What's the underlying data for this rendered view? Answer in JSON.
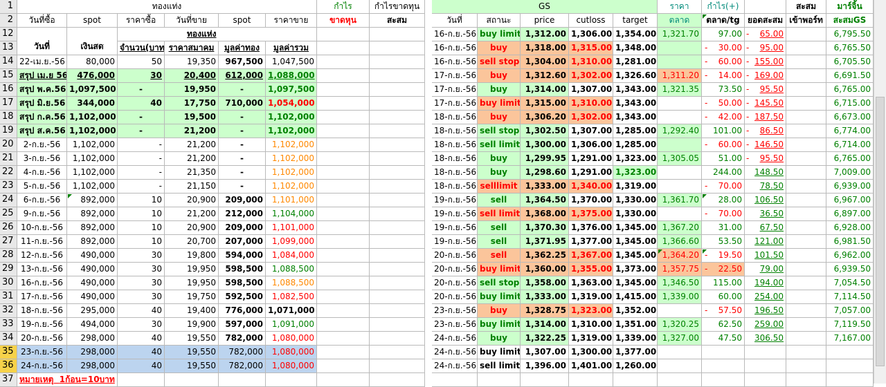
{
  "header": {
    "group1": "ทองแท่ง",
    "profit": "กำไร",
    "cum_pl": "กำไรขาดทุน",
    "gs": "GS",
    "gs_price": "ราคา",
    "gs_profit": "กำไร(+)",
    "cum": "สะสม",
    "margin": "มาร์จิ้น",
    "buy_date": "วันที่ซื้อ",
    "spot": "spot",
    "buy_price": "ราคาซื้อ",
    "sell_date": "วันที่ขาย",
    "spot2": "spot",
    "sell_price": "ราคาขาย",
    "loss": "ขาดหุน",
    "cum2": "สะสม",
    "gs_date": "วันที่",
    "status": "สถานะ",
    "price": "price",
    "cutloss": "cutloss",
    "target": "target",
    "market": "ตลาด",
    "per_tg": "ตลาด/tg",
    "cum_total": "ยอดสะสม",
    "port": "เข้าพอร์ท",
    "cum_gs": "สะสมGS",
    "date_label": "วันที่",
    "cash": "เงินสด",
    "gold": "ทองแห่ง",
    "qty": "จำนวน(บาท",
    "assoc_price": "ราคาสมาคม",
    "gold_value": "มูลค่าทอง",
    "total_value": "มูลค่ารวม"
  },
  "row_numbers": [
    "1",
    "2",
    "12",
    "13",
    "14",
    "15",
    "16",
    "17",
    "18",
    "19",
    "20",
    "21",
    "22",
    "23",
    "24",
    "25",
    "26",
    "27",
    "28",
    "29",
    "30",
    "31",
    "32",
    "33",
    "34",
    "35",
    "36",
    "37"
  ],
  "left_rows": [
    {
      "n": "14",
      "d": "22-เม.ย.-56",
      "cash": "80,000",
      "qty": "50",
      "price": "19,350",
      "gold": "967,500",
      "total": "1,047,500"
    },
    {
      "n": "15",
      "d": "สรุป เม.ย 56",
      "cash": "476,000",
      "qty": "30",
      "price": "20,400",
      "gold": "612,000",
      "total": "1,088,000"
    },
    {
      "n": "16",
      "d": "สรุป พ.ค.56",
      "cash": "1,097,500",
      "qty": "-",
      "price": "19,950",
      "gold": "-",
      "total": "1,097,500"
    },
    {
      "n": "17",
      "d": "สรุป มิ.ย.56",
      "cash": "344,000",
      "qty": "40",
      "price": "17,750",
      "gold": "710,000",
      "total": "1,054,000"
    },
    {
      "n": "18",
      "d": "สรุป ก.ค.56",
      "cash": "1,102,000",
      "qty": "-",
      "price": "19,500",
      "gold": "-",
      "total": "1,102,000"
    },
    {
      "n": "19",
      "d": "สรุป ส.ค.56",
      "cash": "1,102,000",
      "qty": "-",
      "price": "21,200",
      "gold": "-",
      "total": "1,102,000"
    },
    {
      "n": "20",
      "d": "2-ก.ย.-56",
      "cash": "1,102,000",
      "qty": "-",
      "price": "21,200",
      "gold": "-",
      "total": "1,102,000"
    },
    {
      "n": "21",
      "d": "3-ก.ย.-56",
      "cash": "1,102,000",
      "qty": "-",
      "price": "21,200",
      "gold": "-",
      "total": "1,102,000"
    },
    {
      "n": "22",
      "d": "4-ก.ย.-56",
      "cash": "1,102,000",
      "qty": "-",
      "price": "21,350",
      "gold": "-",
      "total": "1,102,000"
    },
    {
      "n": "23",
      "d": "5-ก.ย.-56",
      "cash": "1,102,000",
      "qty": "-",
      "price": "21,150",
      "gold": "-",
      "total": "1,102,000"
    },
    {
      "n": "24",
      "d": "6-ก.ย.-56",
      "cash": "892,000",
      "qty": "10",
      "price": "20,900",
      "gold": "209,000",
      "total": "1,101,000"
    },
    {
      "n": "25",
      "d": "9-ก.ย.-56",
      "cash": "892,000",
      "qty": "10",
      "price": "21,200",
      "gold": "212,000",
      "total": "1,104,000"
    },
    {
      "n": "26",
      "d": "10-ก.ย.-56",
      "cash": "892,000",
      "qty": "10",
      "price": "20,900",
      "gold": "209,000",
      "total": "1,101,000"
    },
    {
      "n": "27",
      "d": "11-ก.ย.-56",
      "cash": "892,000",
      "qty": "10",
      "price": "20,700",
      "gold": "207,000",
      "total": "1,099,000"
    },
    {
      "n": "28",
      "d": "12-ก.ย.-56",
      "cash": "490,000",
      "qty": "30",
      "price": "19,800",
      "gold": "594,000",
      "total": "1,084,000"
    },
    {
      "n": "29",
      "d": "13-ก.ย.-56",
      "cash": "490,000",
      "qty": "30",
      "price": "19,950",
      "gold": "598,500",
      "total": "1,088,500"
    },
    {
      "n": "30",
      "d": "16-ก.ย.-56",
      "cash": "490,000",
      "qty": "30",
      "price": "19,950",
      "gold": "598,500",
      "total": "1,088,500"
    },
    {
      "n": "31",
      "d": "17-ก.ย.-56",
      "cash": "490,000",
      "qty": "30",
      "price": "19,750",
      "gold": "592,500",
      "total": "1,082,500"
    },
    {
      "n": "32",
      "d": "18-ก.ย.-56",
      "cash": "295,000",
      "qty": "40",
      "price": "19,400",
      "gold": "776,000",
      "total": "1,071,000"
    },
    {
      "n": "33",
      "d": "19-ก.ย.-56",
      "cash": "494,000",
      "qty": "30",
      "price": "19,900",
      "gold": "597,000",
      "total": "1,091,000"
    },
    {
      "n": "34",
      "d": "20-ก.ย.-56",
      "cash": "298,000",
      "qty": "40",
      "price": "19,550",
      "gold": "782,000",
      "total": "1,080,000"
    },
    {
      "n": "35",
      "d": "23-ก.ย.-56",
      "cash": "298,000",
      "qty": "40",
      "price": "19,550",
      "gold": "782,000",
      "total": "1,080,000"
    },
    {
      "n": "36",
      "d": "24-ก.ย.-56",
      "cash": "298,000",
      "qty": "40",
      "price": "19,550",
      "gold": "782,000",
      "total": "1,080,000"
    }
  ],
  "gs_rows": [
    {
      "d": "16-ก.ย.-56",
      "st": "buy limit",
      "price": "1,312.00",
      "cut": "1,306.00",
      "tgt": "1,354.00",
      "mkt": "1,321.70",
      "pl": "97.00",
      "cum": "65.00",
      "gs": "6,795.50"
    },
    {
      "d": "16-ก.ย.-56",
      "st": "buy",
      "price": "1,318.00",
      "cut": "1,315.00",
      "tgt": "1,348.00",
      "mkt": "",
      "pl": "30.00",
      "cum": "95.00",
      "gs": "6,765.50"
    },
    {
      "d": "16-ก.ย.-56",
      "st": "sell stop",
      "price": "1,304.00",
      "cut": "1,310.00",
      "tgt": "1,281.00",
      "mkt": "",
      "pl": "60.00",
      "cum": "155.00",
      "gs": "6,705.50"
    },
    {
      "d": "17-ก.ย.-56",
      "st": "buy",
      "price": "1,312.60",
      "cut": "1,302.00",
      "tgt": "1,326.60",
      "mkt": "1,311.20",
      "pl": "14.00",
      "cum": "169.00",
      "gs": "6,691.50"
    },
    {
      "d": "17-ก.ย.-56",
      "st": "buy",
      "price": "1,314.00",
      "cut": "1,307.00",
      "tgt": "1,343.00",
      "mkt": "1,321.35",
      "pl": "73.50",
      "cum": "95.50",
      "gs": "6,765.00"
    },
    {
      "d": "17-ก.ย.-56",
      "st": "buy limit",
      "price": "1,315.00",
      "cut": "1,310.00",
      "tgt": "1,343.00",
      "mkt": "",
      "pl": "50.00",
      "cum": "145.50",
      "gs": "6,715.00"
    },
    {
      "d": "18-ก.ย.-56",
      "st": "buy",
      "price": "1,306.20",
      "cut": "1,302.00",
      "tgt": "1,343.00",
      "mkt": "",
      "pl": "42.00",
      "cum": "187.50",
      "gs": "6,673.00"
    },
    {
      "d": "18-ก.ย.-56",
      "st": "sell stop",
      "price": "1,302.50",
      "cut": "1,307.00",
      "tgt": "1,285.00",
      "mkt": "1,292.40",
      "pl": "101.00",
      "cum": "86.50",
      "gs": "6,774.00"
    },
    {
      "d": "18-ก.ย.-56",
      "st": "sell limit",
      "price": "1,300.00",
      "cut": "1,306.00",
      "tgt": "1,285.00",
      "mkt": "",
      "pl": "60.00",
      "cum": "146.50",
      "gs": "6,714.00"
    },
    {
      "d": "18-ก.ย.-56",
      "st": "buy",
      "price": "1,299.95",
      "cut": "1,291.00",
      "tgt": "1,323.00",
      "mkt": "1,305.05",
      "pl": "51.00",
      "cum": "95.50",
      "gs": "6,765.00"
    },
    {
      "d": "18-ก.ย.-56",
      "st": "buy",
      "price": "1,298.60",
      "cut": "1,291.00",
      "tgt": "1,323.00",
      "mkt": "",
      "pl": "244.00",
      "cum": "148.50",
      "gs": "7,009.00"
    },
    {
      "d": "18-ก.ย.-56",
      "st": "selllimit",
      "price": "1,333.00",
      "cut": "1,340.00",
      "tgt": "1,319.00",
      "mkt": "",
      "pl": "70.00",
      "cum": "78.50",
      "gs": "6,939.00"
    },
    {
      "d": "19-ก.ย.-56",
      "st": "sell",
      "price": "1,364.50",
      "cut": "1,370.00",
      "tgt": "1,330.00",
      "mkt": "1,361.70",
      "pl": "28.00",
      "cum": "106.50",
      "gs": "6,967.00"
    },
    {
      "d": "19-ก.ย.-56",
      "st": "sell limit",
      "price": "1,368.00",
      "cut": "1,375.00",
      "tgt": "1,330.00",
      "mkt": "",
      "pl": "70.00",
      "cum": "36.50",
      "gs": "6,897.00"
    },
    {
      "d": "19-ก.ย.-56",
      "st": "sell",
      "price": "1,370.30",
      "cut": "1,376.00",
      "tgt": "1,345.00",
      "mkt": "1,367.20",
      "pl": "31.00",
      "cum": "67.50",
      "gs": "6,928.00"
    },
    {
      "d": "19-ก.ย.-56",
      "st": "sell",
      "price": "1,371.95",
      "cut": "1,377.00",
      "tgt": "1,345.00",
      "mkt": "1,366.60",
      "pl": "53.50",
      "cum": "121.00",
      "gs": "6,981.50"
    },
    {
      "d": "20-ก.ย.-56",
      "st": "sell",
      "price": "1,362.25",
      "cut": "1,367.00",
      "tgt": "1,345.00",
      "mkt": "1,364.20",
      "pl": "19.50",
      "cum": "101.50",
      "gs": "6,962.00"
    },
    {
      "d": "20-ก.ย.-56",
      "st": "buy limit",
      "price": "1,360.00",
      "cut": "1,355.00",
      "tgt": "1,373.00",
      "mkt": "1,357.75",
      "pl": "22.50",
      "cum": "79.00",
      "gs": "6,939.50"
    },
    {
      "d": "20-ก.ย.-56",
      "st": "sell stop",
      "price": "1,358.00",
      "cut": "1,363.00",
      "tgt": "1,345.00",
      "mkt": "1,346.50",
      "pl": "115.00",
      "cum": "194.00",
      "gs": "7,054.50"
    },
    {
      "d": "20-ก.ย.-56",
      "st": "buy limit",
      "price": "1,333.00",
      "cut": "1,319.00",
      "tgt": "1,415.00",
      "mkt": "1,339.00",
      "pl": "60.00",
      "cum": "254.00",
      "gs": "7,114.50"
    },
    {
      "d": "23-ก.ย.-56",
      "st": "buy",
      "price": "1,328.75",
      "cut": "1,323.00",
      "tgt": "1,352.00",
      "mkt": "",
      "pl": "57.50",
      "cum": "196.50",
      "gs": "7,057.00"
    },
    {
      "d": "23-ก.ย.-56",
      "st": "buy limit",
      "price": "1,314.00",
      "cut": "1,310.00",
      "tgt": "1,351.00",
      "mkt": "1,320.25",
      "pl": "62.50",
      "cum": "259.00",
      "gs": "7,119.50"
    },
    {
      "d": "24-ก.ย.-56",
      "st": "buy",
      "price": "1,322.25",
      "cut": "1,319.00",
      "tgt": "1,339.00",
      "mkt": "1,327.00",
      "pl": "47.50",
      "cum": "306.50",
      "gs": "7,167.00"
    },
    {
      "d": "24-ก.ย.-56",
      "st": "buy limit",
      "price": "1,307.00",
      "cut": "1,300.00",
      "tgt": "1,377.00",
      "mkt": "",
      "pl": "",
      "cum": "",
      "gs": ""
    },
    {
      "d": "24-ก.ย.-56",
      "st": "sell limit",
      "price": "1,396.00",
      "cut": "1,401.00",
      "tgt": "1,260.00",
      "mkt": "",
      "pl": "",
      "cum": "",
      "gs": ""
    }
  ],
  "dash": "-",
  "note": {
    "label": "หมายเหตุ",
    "text": "1ก้อน=10บาท"
  }
}
